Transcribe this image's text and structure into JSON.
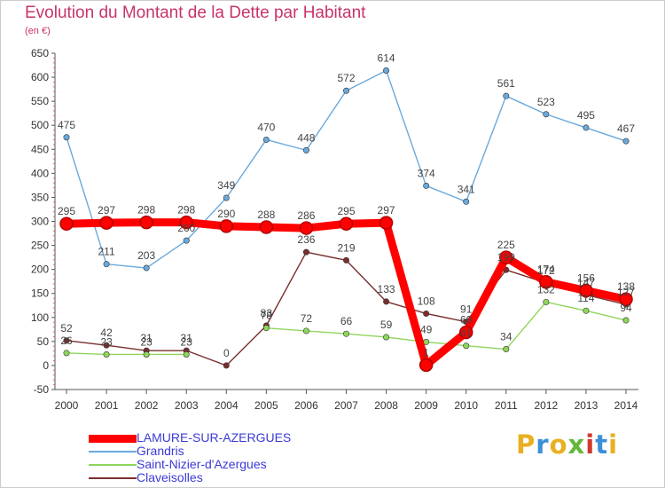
{
  "chart_data": {
    "type": "line",
    "title": "Evolution du Montant de la Dette par Habitant",
    "subtitle": "(en €)",
    "x": [
      "2000",
      "2001",
      "2002",
      "2003",
      "2004",
      "2005",
      "2006",
      "2007",
      "2008",
      "2009",
      "2010",
      "2011",
      "2012",
      "2013",
      "2014"
    ],
    "ylim": [
      -50,
      650
    ],
    "yticks": [
      -50,
      0,
      50,
      100,
      150,
      200,
      250,
      300,
      350,
      400,
      450,
      500,
      550,
      600,
      650
    ],
    "grid": false,
    "legend_position": "bottom-left",
    "series": [
      {
        "name": "LAMURE-SUR-AZERGUES",
        "color": "#ff0000",
        "emphasis": true,
        "values": [
          295,
          297,
          298,
          298,
          290,
          288,
          286,
          295,
          297,
          1,
          69,
          225,
          174,
          156,
          138
        ]
      },
      {
        "name": "Grandris",
        "color": "#6aa9dc",
        "values": [
          475,
          211,
          203,
          260,
          349,
          470,
          448,
          572,
          614,
          374,
          341,
          561,
          523,
          495,
          467
        ]
      },
      {
        "name": "Saint-Nizier-d'Azergues",
        "color": "#8fd65c",
        "values": [
          26,
          23,
          23,
          23,
          null,
          78,
          72,
          66,
          59,
          49,
          41,
          34,
          132,
          114,
          94
        ]
      },
      {
        "name": "Claveisolles",
        "color": "#7a2e2e",
        "values": [
          52,
          42,
          31,
          31,
          0,
          83,
          236,
          219,
          133,
          108,
          91,
          199,
          172,
          147,
          127
        ]
      }
    ]
  },
  "branding": {
    "logo_text": "Proxiti",
    "logo_colors": [
      "#e8b021",
      "#3c8fd8",
      "#e8b021",
      "#63b83a",
      "#d03a2e",
      "#3c8fd8",
      "#e8b021"
    ]
  }
}
